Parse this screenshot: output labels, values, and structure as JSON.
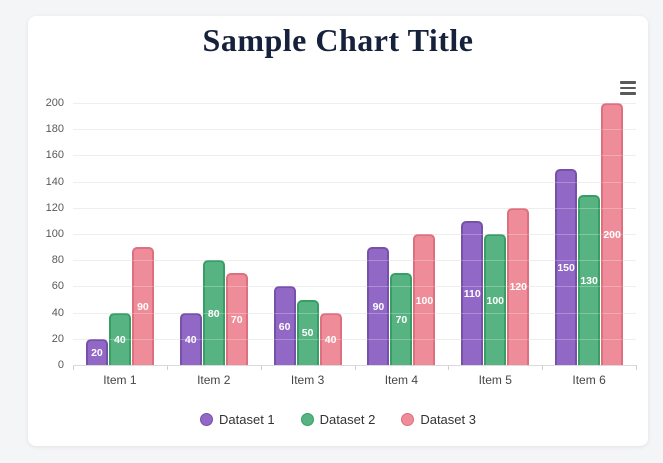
{
  "page": {
    "background": "#f4f5f6",
    "card_background": "#ffffff"
  },
  "icons": {
    "context_menu": "hamburger-icon"
  },
  "chart_data": {
    "type": "bar",
    "title": "Sample Chart Title",
    "title_color": "#16213c",
    "categories": [
      "Item 1",
      "Item 2",
      "Item 3",
      "Item 4",
      "Item 5",
      "Item 6"
    ],
    "series": [
      {
        "name": "Dataset 1",
        "color": "#9168c6",
        "border_color": "#7751a8",
        "values": [
          20,
          40,
          60,
          90,
          110,
          150
        ]
      },
      {
        "name": "Dataset 2",
        "color": "#57b482",
        "border_color": "#379e66",
        "values": [
          40,
          80,
          50,
          70,
          100,
          130
        ]
      },
      {
        "name": "Dataset 3",
        "color": "#ee8d99",
        "border_color": "#dd6f7f",
        "values": [
          90,
          70,
          40,
          100,
          120,
          200
        ]
      }
    ],
    "ylim": [
      0,
      200
    ],
    "ytick_step": 20,
    "ytick_labels": [
      "0",
      "20",
      "40",
      "60",
      "80",
      "100",
      "120",
      "140",
      "160",
      "180",
      "200"
    ],
    "grid": true,
    "data_labels": true,
    "data_label_color": "#ffffff",
    "legend_position": "bottom"
  }
}
